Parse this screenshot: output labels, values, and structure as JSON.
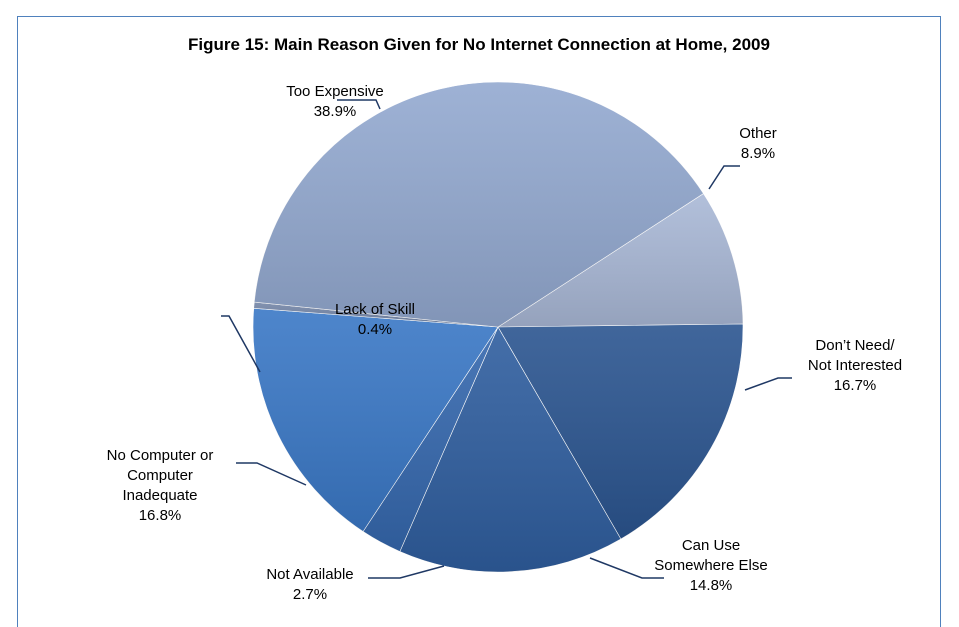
{
  "chart_data": {
    "type": "pie",
    "title": "Figure 15:  Main Reason Given for No Internet Connection at Home, 2009",
    "slices": [
      {
        "label": "Too Expensive",
        "label_lines": [
          "Too Expensive"
        ],
        "value": 38.9,
        "value_text": "38.9%",
        "color": "#93a9d0"
      },
      {
        "label": "Other",
        "label_lines": [
          "Other"
        ],
        "value": 8.9,
        "value_text": "8.9%",
        "color": "#a9b8d6"
      },
      {
        "label": "Don’t Need/ Not Interested",
        "label_lines": [
          "Don’t Need/",
          "Not Interested"
        ],
        "value": 16.7,
        "value_text": "16.7%",
        "color": "#2b5590"
      },
      {
        "label": "Can Use Somewhere Else",
        "label_lines": [
          "Can Use",
          "Somewhere Else"
        ],
        "value": 14.8,
        "value_text": "14.8%",
        "color": "#2f5e9f"
      },
      {
        "label": "Not Available",
        "label_lines": [
          "Not Available"
        ],
        "value": 2.7,
        "value_text": "2.7%",
        "color": "#3568ae"
      },
      {
        "label": "No Computer or Computer Inadequate",
        "label_lines": [
          "No Computer or",
          "Computer",
          "Inadequate"
        ],
        "value": 16.8,
        "value_text": "16.8%",
        "color": "#3a78c6"
      },
      {
        "label": "Lack of Skill",
        "label_lines": [
          "Lack of Skill"
        ],
        "value": 0.4,
        "value_text": "0.4%",
        "color": "#7486a8"
      }
    ]
  }
}
